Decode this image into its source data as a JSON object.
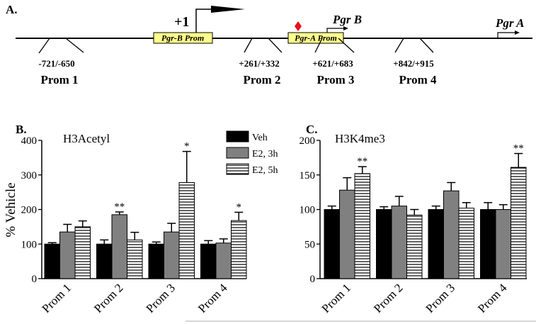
{
  "panel_a": {
    "label": "A.",
    "tss_label": "+1",
    "pgrb_prom_label": "Pgr-B Prom",
    "pgra_prom_label": "Pgr-A Prom",
    "pgrb_gene_label": "Pgr B",
    "pgra_gene_label": "Pgr A",
    "diamond_color": "#e8111a",
    "box_color": "#ffff8c",
    "primers": [
      {
        "coords": "-721/-650",
        "name": "Prom 1"
      },
      {
        "coords": "+261/+332",
        "name": "Prom 2"
      },
      {
        "coords": "+621/+683",
        "name": "Prom 3"
      },
      {
        "coords": "+842/+915",
        "name": "Prom 4"
      }
    ]
  },
  "legend": {
    "items": [
      {
        "label": "Veh",
        "fill": "black"
      },
      {
        "label": "E2, 3h",
        "fill": "gray"
      },
      {
        "label": "E2, 5h",
        "fill": "stripes"
      }
    ]
  },
  "chart_data": [
    {
      "panel": "B.",
      "type": "bar",
      "title": "H3Acetyl",
      "ylabel": "% Vehicle",
      "xlabel": "",
      "ylim": [
        0,
        400
      ],
      "yticks": [
        0,
        100,
        200,
        300,
        400
      ],
      "categories": [
        "Prom 1",
        "Prom 2",
        "Prom 3",
        "Prom 4"
      ],
      "series": [
        {
          "name": "Veh",
          "values": [
            100,
            100,
            100,
            100
          ],
          "errors": [
            4,
            12,
            6,
            10
          ]
        },
        {
          "name": "E2, 3h",
          "values": [
            135,
            185,
            135,
            103
          ],
          "errors": [
            22,
            8,
            25,
            12
          ]
        },
        {
          "name": "E2, 5h",
          "values": [
            150,
            112,
            278,
            168
          ],
          "errors": [
            17,
            22,
            90,
            24
          ]
        }
      ],
      "significance": [
        {
          "category": "Prom 2",
          "series": "E2, 3h",
          "text": "**"
        },
        {
          "category": "Prom 3",
          "series": "E2, 5h",
          "text": "*"
        },
        {
          "category": "Prom 4",
          "series": "E2, 5h",
          "text": "*"
        }
      ]
    },
    {
      "panel": "C.",
      "type": "bar",
      "title": "H3K4me3",
      "ylabel": "",
      "xlabel": "",
      "ylim": [
        0,
        200
      ],
      "yticks": [
        0,
        50,
        100,
        150,
        200
      ],
      "categories": [
        "Prom 1",
        "Prom 2",
        "Prom 3",
        "Prom 4"
      ],
      "series": [
        {
          "name": "Veh",
          "values": [
            100,
            100,
            100,
            100
          ],
          "errors": [
            5,
            4,
            5,
            10
          ]
        },
        {
          "name": "E2, 3h",
          "values": [
            128,
            105,
            127,
            100
          ],
          "errors": [
            18,
            14,
            12,
            7
          ]
        },
        {
          "name": "E2, 5h",
          "values": [
            152,
            92,
            102,
            161
          ],
          "errors": [
            10,
            8,
            8,
            20
          ]
        }
      ],
      "significance": [
        {
          "category": "Prom 1",
          "series": "E2, 5h",
          "text": "**"
        },
        {
          "category": "Prom 4",
          "series": "E2, 5h",
          "text": "**"
        }
      ]
    }
  ]
}
